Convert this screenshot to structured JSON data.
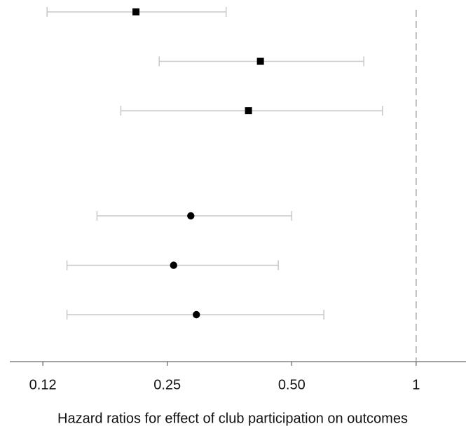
{
  "chart_data": {
    "type": "forest",
    "x_label": "Hazard ratios for effect of club participation on outcomes",
    "log_x": true,
    "xlim": [
      0.104,
      1.32
    ],
    "xticks": [
      {
        "value": 0.125,
        "label": "0.12"
      },
      0.25,
      {
        "value": 0.5,
        "label": "0.50"
      },
      1
    ],
    "reference_line": 1,
    "ci_color": "#c8c8c8",
    "series": [
      {
        "marker": "square",
        "color": "#000000",
        "values": [
          0.21,
          0.42,
          0.393
        ],
        "lower": [
          0.128,
          0.239,
          0.193
        ],
        "upper": [
          0.347,
          0.747,
          0.829
        ]
      },
      {
        "marker": "circle",
        "color": "#000000",
        "values": [
          0.285,
          0.259,
          0.294
        ],
        "lower": [
          0.169,
          0.143,
          0.143
        ],
        "upper": [
          0.5,
          0.464,
          0.598
        ]
      }
    ]
  }
}
